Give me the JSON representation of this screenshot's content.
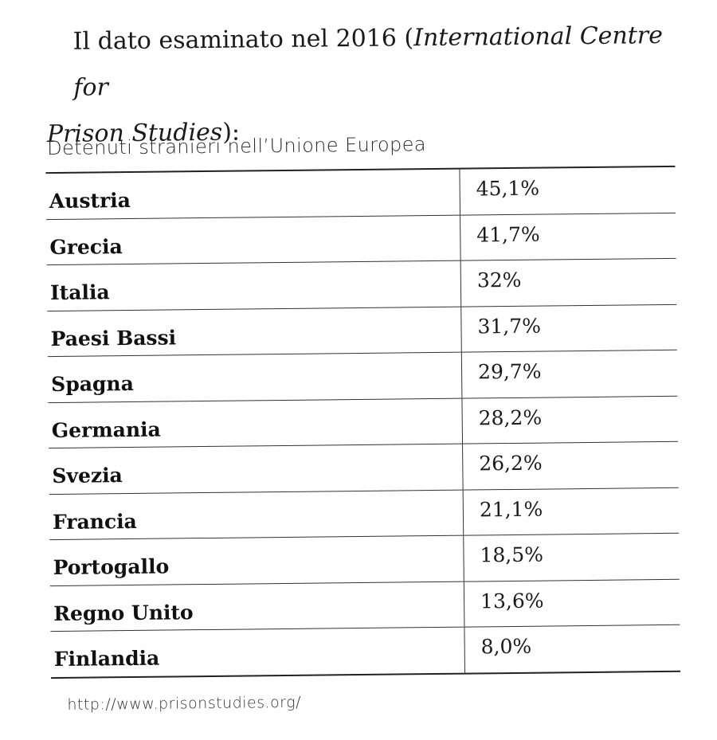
{
  "intro": {
    "text_before": "Il dato esaminato nel 2016 (",
    "source_italic_line1": "International Centre for",
    "source_italic_line2": "Prison Studies",
    "text_after": "):"
  },
  "table": {
    "title": "Detenuti stranieri nell’Unione Europea",
    "rows": [
      {
        "country": "Austria",
        "value": "45,1%"
      },
      {
        "country": "Grecia",
        "value": "41,7%"
      },
      {
        "country": "Italia",
        "value": "32%"
      },
      {
        "country": "Paesi Bassi",
        "value": "31,7%"
      },
      {
        "country": "Spagna",
        "value": "29,7%"
      },
      {
        "country": "Germania",
        "value": "28,2%"
      },
      {
        "country": "Svezia",
        "value": "26,2%"
      },
      {
        "country": "Francia",
        "value": "21,1%"
      },
      {
        "country": "Portogallo",
        "value": "18,5%"
      },
      {
        "country": "Regno Unito",
        "value": "13,6%"
      },
      {
        "country": "Finlandia",
        "value": "8,0%"
      }
    ]
  },
  "source_url": "http://www.prisonstudies.org/"
}
